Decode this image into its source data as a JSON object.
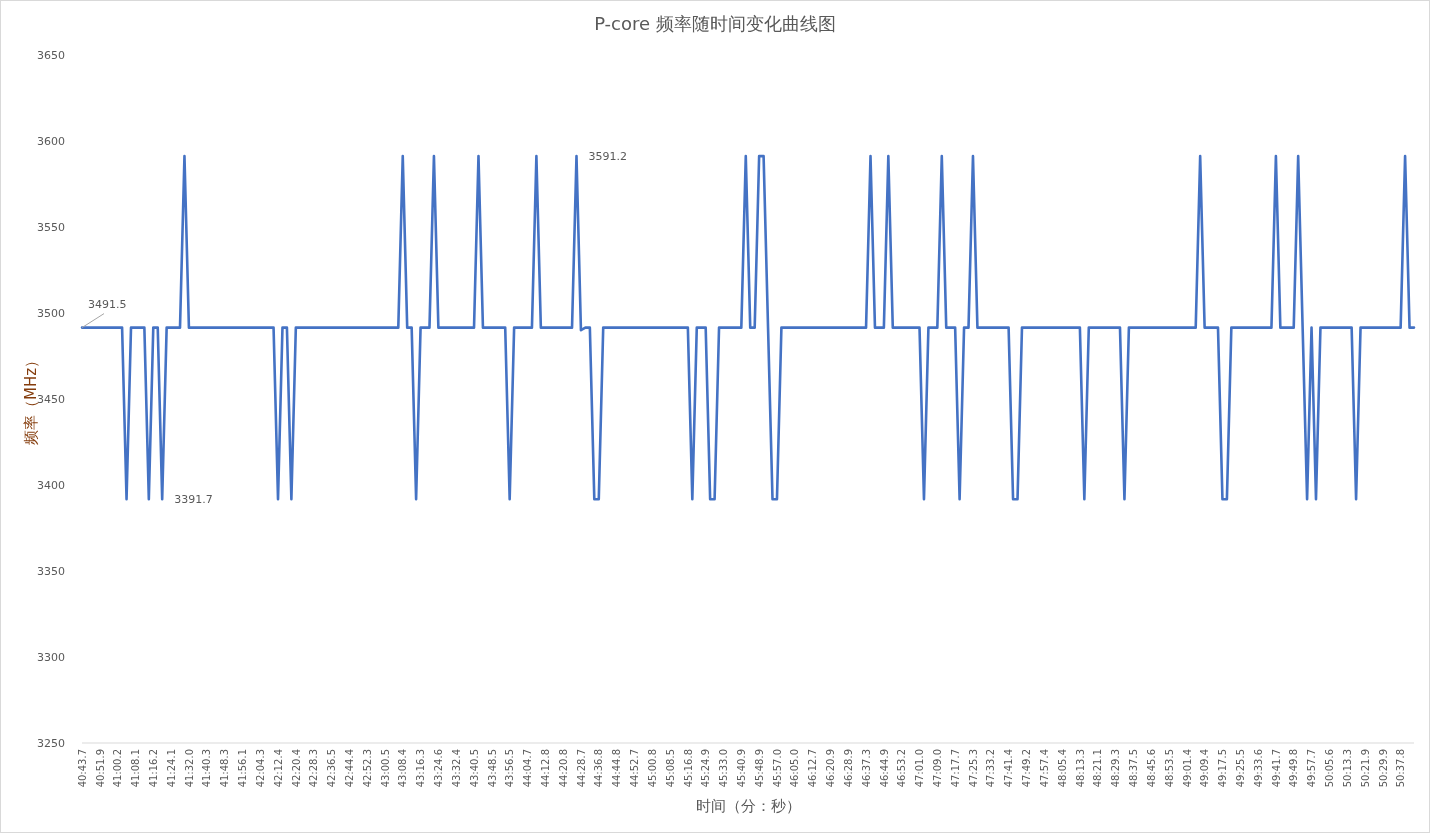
{
  "chart_data": {
    "type": "line",
    "title": "P-core 频率随时间变化曲线图",
    "xlabel": "时间（分：秒）",
    "ylabel": "频率（MHz）",
    "ylim": [
      3250,
      3650
    ],
    "yticks": [
      3250,
      3300,
      3350,
      3400,
      3450,
      3500,
      3550,
      3600,
      3650
    ],
    "categories": [
      "40:43.7",
      null,
      null,
      null,
      "40:51.9",
      null,
      null,
      null,
      "41:00.2",
      null,
      null,
      null,
      "41:08.1",
      null,
      null,
      null,
      "41:16.2",
      null,
      null,
      null,
      "41:24.1",
      null,
      null,
      null,
      "41:32.0",
      null,
      null,
      null,
      "41:40.3",
      null,
      null,
      null,
      "41:48.3",
      null,
      null,
      null,
      "41:56.1",
      null,
      null,
      null,
      "42:04.3",
      null,
      null,
      null,
      "42:12.4",
      null,
      null,
      null,
      "42:20.4",
      null,
      null,
      null,
      "42:28.3",
      null,
      null,
      null,
      "42:36.5",
      null,
      null,
      null,
      "42:44.4",
      null,
      null,
      null,
      "42:52.3",
      null,
      null,
      null,
      "43:00.5",
      null,
      null,
      null,
      "43:08.4",
      null,
      null,
      null,
      "43:16.3",
      null,
      null,
      null,
      "43:24.6",
      null,
      null,
      null,
      "43:32.4",
      null,
      null,
      null,
      "43:40.5",
      null,
      null,
      null,
      "43:48.5",
      null,
      null,
      null,
      "43:56.5",
      null,
      null,
      null,
      "44:04.7",
      null,
      null,
      null,
      "44:12.8",
      null,
      null,
      null,
      "44:20.8",
      null,
      null,
      null,
      "44:28.7",
      null,
      null,
      null,
      "44:36.8",
      null,
      null,
      null,
      "44:44.8",
      null,
      null,
      null,
      "44:52.7",
      null,
      null,
      null,
      "45:00.8",
      null,
      null,
      null,
      "45:08.5",
      null,
      null,
      null,
      "45:16.8",
      null,
      null,
      null,
      "45:24.9",
      null,
      null,
      null,
      "45:33.0",
      null,
      null,
      null,
      "45:40.9",
      null,
      null,
      null,
      "45:48.9",
      null,
      null,
      null,
      "45:57.0",
      null,
      null,
      null,
      "46:05.0",
      null,
      null,
      null,
      "46:12.7",
      null,
      null,
      null,
      "46:20.9",
      null,
      null,
      null,
      "46:28.9",
      null,
      null,
      null,
      "46:37.3",
      null,
      null,
      null,
      "46:44.9",
      null,
      null,
      null,
      "46:53.2",
      null,
      null,
      null,
      "47:01.0",
      null,
      null,
      null,
      "47:09.0",
      null,
      null,
      null,
      "47:17.7",
      null,
      null,
      null,
      "47:25.3",
      null,
      null,
      null,
      "47:33.2",
      null,
      null,
      null,
      "47:41.4",
      null,
      null,
      null,
      "47:49.2",
      null,
      null,
      null,
      "47:57.4",
      null,
      null,
      null,
      "48:05.4",
      null,
      null,
      null,
      "48:13.3",
      null,
      null,
      null,
      "48:21.1",
      null,
      null,
      null,
      "48:29.3",
      null,
      null,
      null,
      "48:37.5",
      null,
      null,
      null,
      "48:45.6",
      null,
      null,
      null,
      "48:53.5",
      null,
      null,
      null,
      "49:01.4",
      null,
      null,
      null,
      "49:09.4",
      null,
      null,
      null,
      "49:17.5",
      null,
      null,
      null,
      "49:25.5",
      null,
      null,
      null,
      "49:33.6",
      null,
      null,
      null,
      "49:41.7",
      null,
      null,
      null,
      "49:49.8",
      null,
      null,
      null,
      "49:57.7",
      null,
      null,
      null,
      "50:05.6",
      null,
      null,
      null,
      "50:13.3",
      null,
      null,
      null,
      "50:21.9",
      null,
      null,
      null,
      "50:29.9",
      null,
      null,
      null,
      "50:37.8",
      null,
      null,
      null
    ],
    "series": [
      {
        "color": "#4472c4",
        "values": [
          3491.5,
          3491.5,
          3491.5,
          3491.5,
          3491.5,
          3491.5,
          3491.5,
          3491.5,
          3491.5,
          3491.5,
          3391.7,
          3491.5,
          3491.5,
          3491.5,
          3491.5,
          3391.7,
          3491.5,
          3491.5,
          3391.7,
          3491.5,
          3491.5,
          3491.5,
          3491.5,
          3591.2,
          3491.5,
          3491.5,
          3491.5,
          3491.5,
          3491.5,
          3491.5,
          3491.5,
          3491.5,
          3491.5,
          3491.5,
          3491.5,
          3491.5,
          3491.5,
          3491.5,
          3491.5,
          3491.5,
          3491.5,
          3491.5,
          3491.5,
          3491.5,
          3391.7,
          3491.5,
          3491.5,
          3391.7,
          3491.5,
          3491.5,
          3491.5,
          3491.5,
          3491.5,
          3491.5,
          3491.5,
          3491.5,
          3491.5,
          3491.5,
          3491.5,
          3491.5,
          3491.5,
          3491.5,
          3491.5,
          3491.5,
          3491.5,
          3491.5,
          3491.5,
          3491.5,
          3491.5,
          3491.5,
          3491.5,
          3491.5,
          3591.2,
          3491.5,
          3491.5,
          3391.7,
          3491.5,
          3491.5,
          3491.5,
          3591.2,
          3491.5,
          3491.5,
          3491.5,
          3491.5,
          3491.5,
          3491.5,
          3491.5,
          3491.5,
          3491.5,
          3591.2,
          3491.5,
          3491.5,
          3491.5,
          3491.5,
          3491.5,
          3491.5,
          3391.7,
          3491.5,
          3491.5,
          3491.5,
          3491.5,
          3491.5,
          3591.2,
          3491.5,
          3491.5,
          3491.5,
          3491.5,
          3491.5,
          3491.5,
          3491.5,
          3491.5,
          3591.2,
          3490,
          3491.5,
          3491.5,
          3391.7,
          3391.7,
          3491.5,
          3491.5,
          3491.5,
          3491.5,
          3491.5,
          3491.5,
          3491.5,
          3491.5,
          3491.5,
          3491.5,
          3491.5,
          3491.5,
          3491.5,
          3491.5,
          3491.5,
          3491.5,
          3491.5,
          3491.5,
          3491.5,
          3491.5,
          3391.7,
          3491.5,
          3491.5,
          3491.5,
          3391.7,
          3391.7,
          3491.5,
          3491.5,
          3491.5,
          3491.5,
          3491.5,
          3491.5,
          3591.2,
          3491.5,
          3491.5,
          3591.2,
          3591.2,
          3491.5,
          3391.7,
          3391.7,
          3491.5,
          3491.5,
          3491.5,
          3491.5,
          3491.5,
          3491.5,
          3491.5,
          3491.5,
          3491.5,
          3491.5,
          3491.5,
          3491.5,
          3491.5,
          3491.5,
          3491.5,
          3491.5,
          3491.5,
          3491.5,
          3491.5,
          3491.5,
          3591.2,
          3491.5,
          3491.5,
          3491.5,
          3591.2,
          3491.5,
          3491.5,
          3491.5,
          3491.5,
          3491.5,
          3491.5,
          3491.5,
          3391.7,
          3491.5,
          3491.5,
          3491.5,
          3591.2,
          3491.5,
          3491.5,
          3491.5,
          3391.7,
          3491.5,
          3491.5,
          3591.2,
          3491.5,
          3491.5,
          3491.5,
          3491.5,
          3491.5,
          3491.5,
          3491.5,
          3491.5,
          3391.7,
          3391.7,
          3491.5,
          3491.5,
          3491.5,
          3491.5,
          3491.5,
          3491.5,
          3491.5,
          3491.5,
          3491.5,
          3491.5,
          3491.5,
          3491.5,
          3491.5,
          3491.5,
          3391.7,
          3491.5,
          3491.5,
          3491.5,
          3491.5,
          3491.5,
          3491.5,
          3491.5,
          3491.5,
          3391.7,
          3491.5,
          3491.5,
          3491.5,
          3491.5,
          3491.5,
          3491.5,
          3491.5,
          3491.5,
          3491.5,
          3491.5,
          3491.5,
          3491.5,
          3491.5,
          3491.5,
          3491.5,
          3491.5,
          3591.2,
          3491.5,
          3491.5,
          3491.5,
          3491.5,
          3391.7,
          3391.7,
          3491.5,
          3491.5,
          3491.5,
          3491.5,
          3491.5,
          3491.5,
          3491.5,
          3491.5,
          3491.5,
          3491.5,
          3591.2,
          3491.5,
          3491.5,
          3491.5,
          3491.5,
          3591.2,
          3491.5,
          3391.7,
          3491.5,
          3391.7,
          3491.5,
          3491.5,
          3491.5,
          3491.5,
          3491.5,
          3491.5,
          3491.5,
          3491.5,
          3391.7,
          3491.5,
          3491.5,
          3491.5,
          3491.5,
          3491.5,
          3491.5,
          3491.5,
          3491.5,
          3491.5,
          3491.5,
          3591.2,
          3491.5,
          3491.5
        ],
        "value_labels": [
          "3491.5",
          null,
          null,
          null,
          null,
          null,
          null,
          null,
          null,
          null,
          null,
          null,
          null,
          null,
          null,
          null,
          null,
          null,
          "3391.7",
          null,
          null,
          null,
          null,
          null,
          null,
          null,
          null,
          null,
          null,
          null,
          null,
          null,
          null,
          null,
          null,
          null,
          null,
          null,
          null,
          null,
          null,
          null,
          null,
          null,
          null,
          null,
          null,
          null,
          null,
          null,
          null,
          null,
          null,
          null,
          null,
          null,
          null,
          null,
          null,
          null,
          null,
          null,
          null,
          null,
          null,
          null,
          null,
          null,
          null,
          null,
          null,
          null,
          null,
          null,
          null,
          null,
          null,
          null,
          null,
          null,
          null,
          null,
          null,
          null,
          null,
          null,
          null,
          null,
          null,
          null,
          null,
          null,
          null,
          null,
          null,
          null,
          null,
          null,
          null,
          null,
          null,
          null,
          null,
          null,
          null,
          null,
          null,
          null,
          null,
          null,
          null,
          "3591.2",
          null,
          null,
          null,
          null,
          null,
          null,
          null,
          null,
          null,
          null,
          null,
          null,
          null,
          null,
          null,
          null,
          null,
          null,
          null,
          null,
          null,
          null,
          null,
          null,
          null,
          null,
          null,
          null,
          null,
          null,
          null,
          null,
          null,
          null,
          null,
          null,
          null,
          null,
          null,
          null,
          null,
          null,
          null,
          null,
          null,
          null,
          null,
          null,
          null,
          null,
          null,
          null,
          null,
          null,
          null,
          null,
          null,
          null,
          null,
          null,
          null,
          null,
          null,
          null,
          null,
          null,
          null,
          null,
          null,
          null,
          null,
          null,
          null,
          null,
          null,
          null,
          null,
          null,
          null,
          null,
          null,
          null,
          null,
          null,
          null,
          null,
          null,
          null,
          null,
          null,
          null,
          null,
          null,
          null,
          null,
          null,
          null,
          null,
          null,
          null,
          null,
          null,
          null,
          null,
          null,
          null,
          null,
          null,
          null,
          null,
          null,
          null,
          null,
          null,
          null,
          null,
          null,
          null,
          null,
          null,
          null,
          null,
          null,
          null,
          null,
          null,
          null,
          null,
          null,
          null,
          null,
          null,
          null,
          null,
          null,
          null,
          null,
          null,
          null,
          null,
          null,
          null,
          null,
          null,
          null,
          null,
          null,
          null,
          null,
          null,
          null,
          null,
          null,
          null,
          null,
          null,
          null,
          null,
          null,
          null,
          null,
          null,
          null,
          null,
          null,
          null,
          null,
          null,
          null,
          null,
          null,
          null,
          null,
          null,
          null,
          null,
          null,
          null,
          null,
          null,
          null,
          null,
          null,
          null,
          null,
          null,
          null,
          null
        ]
      }
    ]
  }
}
